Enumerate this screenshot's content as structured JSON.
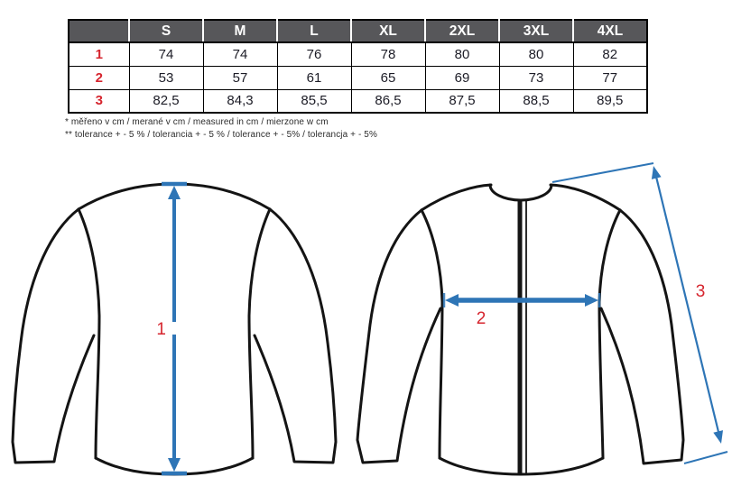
{
  "table": {
    "corner": "",
    "sizes": [
      "S",
      "M",
      "L",
      "XL",
      "2XL",
      "3XL",
      "4XL"
    ],
    "rows": [
      {
        "label": "1",
        "values": [
          "74",
          "74",
          "76",
          "78",
          "80",
          "80",
          "82"
        ]
      },
      {
        "label": "2",
        "values": [
          "53",
          "57",
          "61",
          "65",
          "69",
          "73",
          "77"
        ]
      },
      {
        "label": "3",
        "values": [
          "82,5",
          "84,3",
          "85,5",
          "86,5",
          "87,5",
          "88,5",
          "89,5"
        ]
      }
    ]
  },
  "footnotes": {
    "measured": "* měřeno v cm / merané v cm / measured in cm / mierzone w cm",
    "tolerance": "** tolerance + - 5 % / tolerancia + - 5 % / tolerance + - 5% / tolerancja + - 5%"
  },
  "diagram": {
    "label_1": "1",
    "label_2": "2",
    "label_3": "3"
  },
  "colors": {
    "header_bg": "#57575a",
    "accent_red": "#d6252e",
    "arrow_blue": "#2e75b6",
    "line_black": "#141414"
  }
}
